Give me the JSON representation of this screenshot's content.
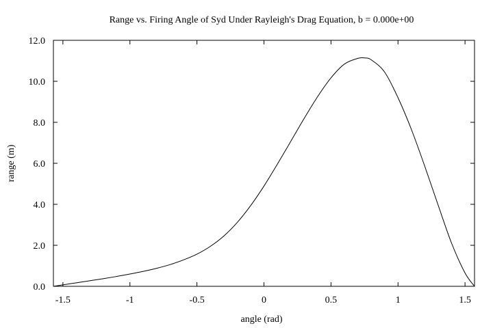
{
  "chart_data": {
    "type": "line",
    "title": "Range vs. Firing Angle of Syd Under Rayleigh's Drag Equation, b = 0.000e+00",
    "xlabel": "angle (rad)",
    "ylabel": "range (m)",
    "xlim": [
      -1.5708,
      1.5708
    ],
    "ylim": [
      0,
      12
    ],
    "x_ticks": [
      -1.5,
      -1,
      -0.5,
      0,
      0.5,
      1,
      1.5
    ],
    "x_tick_labels": [
      "-1.5",
      "-1",
      "-0.5",
      "0",
      "0.5",
      "1",
      "1.5"
    ],
    "y_ticks": [
      0,
      2,
      4,
      6,
      8,
      10,
      12
    ],
    "y_tick_labels": [
      "0.0",
      "2.0",
      "4.0",
      "6.0",
      "8.0",
      "10.0",
      "12.0"
    ],
    "grid": false,
    "legend": "none",
    "line_color": "#000000",
    "series": [
      {
        "x": [
          -1.5708,
          -1.5,
          -1.4,
          -1.3,
          -1.2,
          -1.1,
          -1.0,
          -0.9,
          -0.8,
          -0.7,
          -0.6,
          -0.5,
          -0.4,
          -0.3,
          -0.2,
          -0.1,
          0.0,
          0.1,
          0.2,
          0.3,
          0.4,
          0.5,
          0.6,
          0.7,
          0.75,
          0.8,
          0.9,
          1.0,
          1.1,
          1.2,
          1.3,
          1.4,
          1.5,
          1.5708
        ],
        "y": [
          0.0,
          0.07,
          0.17,
          0.27,
          0.37,
          0.48,
          0.6,
          0.73,
          0.88,
          1.06,
          1.29,
          1.57,
          1.95,
          2.45,
          3.11,
          3.93,
          4.89,
          5.96,
          7.07,
          8.19,
          9.25,
          10.17,
          10.84,
          11.12,
          11.14,
          11.05,
          10.45,
          9.2,
          7.65,
          5.85,
          3.95,
          2.1,
          0.65,
          0.0
        ]
      }
    ]
  }
}
